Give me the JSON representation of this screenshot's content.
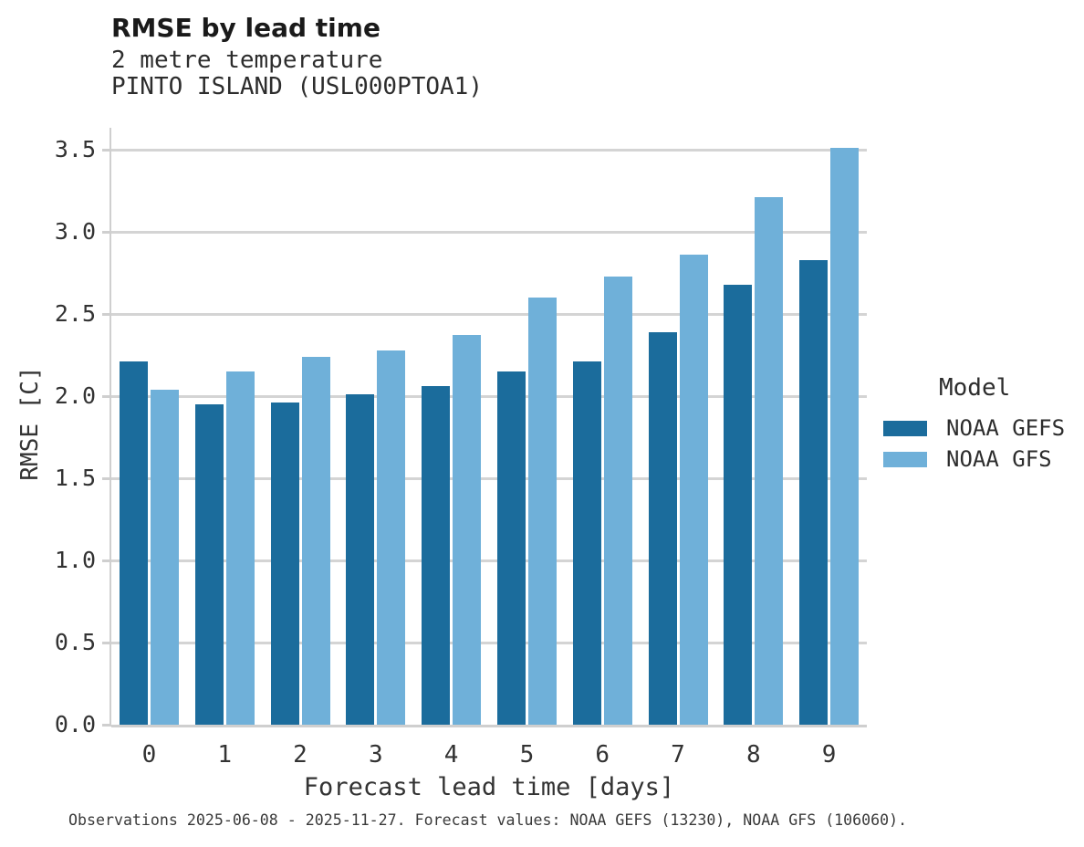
{
  "chart_data": {
    "type": "bar",
    "title": "RMSE by lead time",
    "subtitle": [
      "2 metre temperature",
      "PINTO ISLAND (USL000PTOA1)"
    ],
    "xlabel": "Forecast lead time [days]",
    "ylabel": "RMSE [C]",
    "categories": [
      0,
      1,
      2,
      3,
      4,
      5,
      6,
      7,
      8,
      9
    ],
    "series": [
      {
        "name": "NOAA GEFS",
        "color": "#1b6c9c",
        "values": [
          2.21,
          1.95,
          1.96,
          2.01,
          2.06,
          2.15,
          2.21,
          2.39,
          2.68,
          2.83
        ]
      },
      {
        "name": "NOAA GFS",
        "color": "#6fb0d9",
        "values": [
          2.04,
          2.15,
          2.24,
          2.28,
          2.37,
          2.6,
          2.73,
          2.86,
          3.21,
          3.51
        ]
      }
    ],
    "ylim": [
      0,
      3.63
    ],
    "yticks": [
      0.0,
      0.5,
      1.0,
      1.5,
      2.0,
      2.5,
      3.0,
      3.5
    ],
    "grid": "horizontal",
    "legend": {
      "title": "Model",
      "position": "right"
    }
  },
  "footer": {
    "text": "Observations 2025-06-08 - 2025-11-27. Forecast values: NOAA GEFS (13230), NOAA GFS (106060)."
  }
}
